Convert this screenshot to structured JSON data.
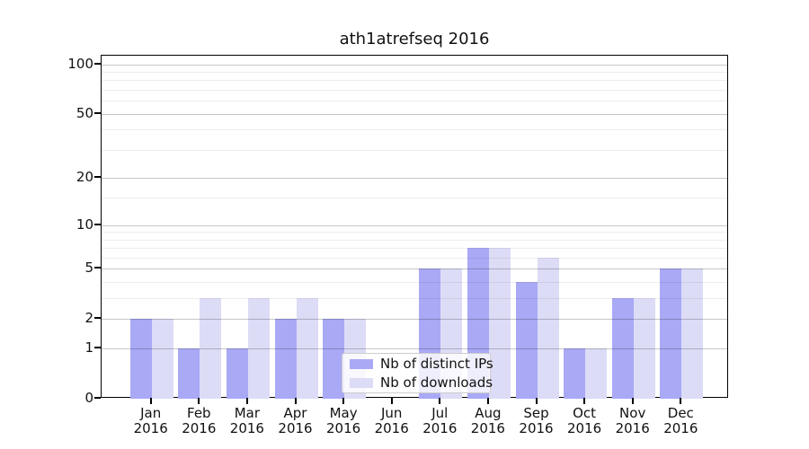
{
  "chart_data": {
    "type": "bar",
    "title": "ath1atrefseq 2016",
    "categories": [
      "Jan 2016",
      "Feb 2016",
      "Mar 2016",
      "Apr 2016",
      "May 2016",
      "Jun 2016",
      "Jul 2016",
      "Aug 2016",
      "Sep 2016",
      "Oct 2016",
      "Nov 2016",
      "Dec 2016"
    ],
    "series": [
      {
        "name": "Nb of distinct IPs",
        "color": "#a9a9f6",
        "values": [
          2,
          1,
          1,
          2,
          2,
          0,
          5,
          7,
          4,
          1,
          3,
          5
        ]
      },
      {
        "name": "Nb of downloads",
        "color": "#dcdcf7",
        "values": [
          2,
          3,
          3,
          3,
          2,
          0,
          5,
          7,
          6,
          1,
          3,
          5
        ]
      }
    ],
    "xlabel": "",
    "ylabel": "",
    "yscale": "log1p",
    "yticks": [
      0,
      1,
      2,
      5,
      10,
      20,
      50,
      100
    ],
    "minor_yticks": [
      3,
      4,
      6,
      7,
      8,
      9,
      15,
      30,
      40,
      60,
      70,
      80,
      90
    ],
    "ylim": [
      0,
      113
    ],
    "grid": true,
    "legend_position": "lower center",
    "colors": {
      "background": "#ffffff",
      "axis": "#000000",
      "grid_major": "#c9c9c9",
      "grid_minor": "#ececec",
      "legend_border": "#cccccc",
      "text": "#111111"
    }
  }
}
